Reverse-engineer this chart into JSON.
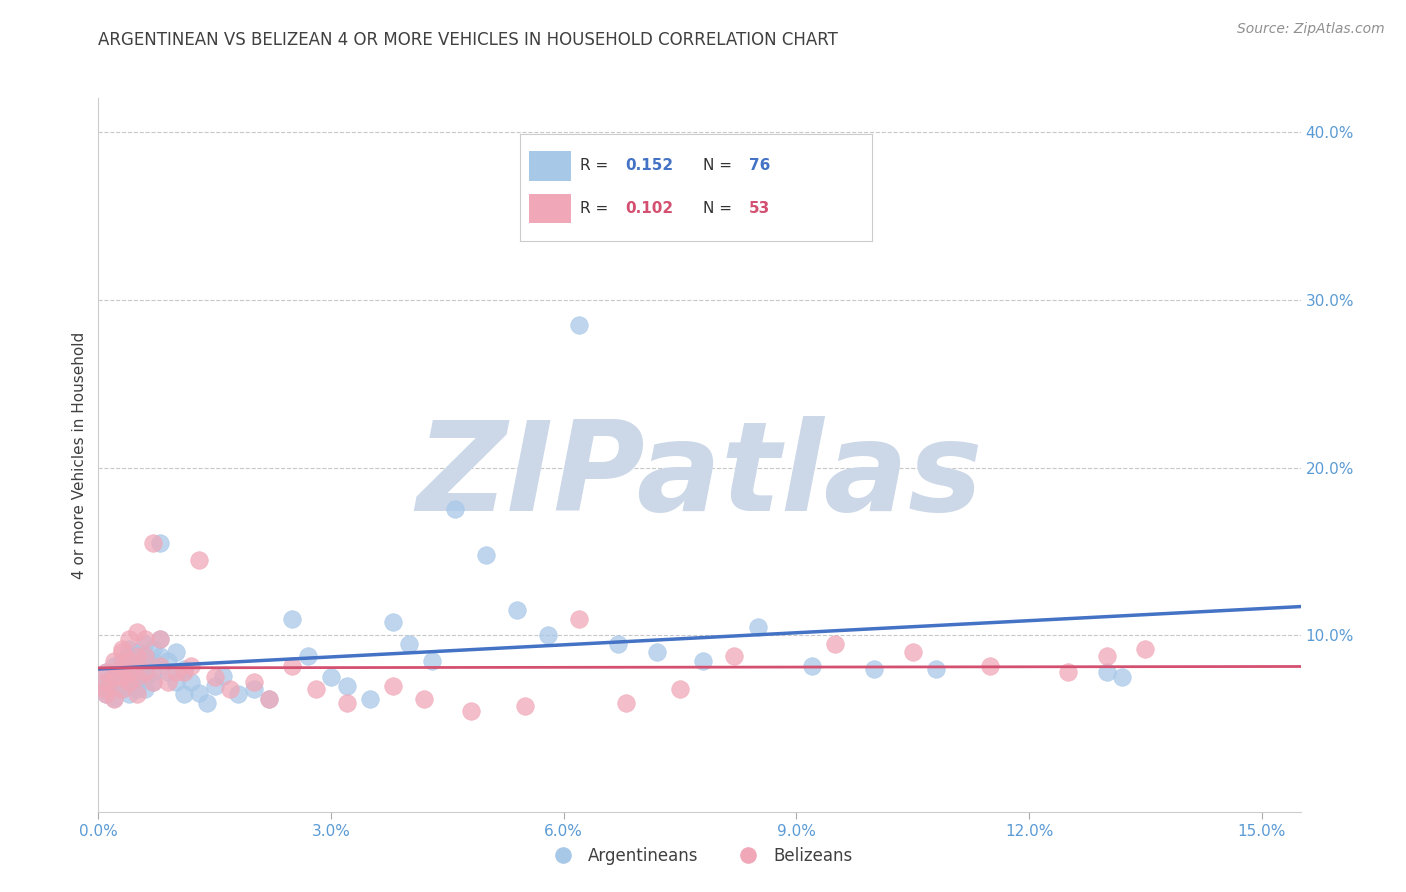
{
  "title": "ARGENTINEAN VS BELIZEAN 4 OR MORE VEHICLES IN HOUSEHOLD CORRELATION CHART",
  "source": "Source: ZipAtlas.com",
  "ylabel": "4 or more Vehicles in Household",
  "xlim": [
    0.0,
    0.155
  ],
  "ylim": [
    -0.005,
    0.42
  ],
  "xticks": [
    0.0,
    0.03,
    0.06,
    0.09,
    0.12,
    0.15
  ],
  "xtick_labels": [
    "0.0%",
    "3.0%",
    "6.0%",
    "9.0%",
    "12.0%",
    "15.0%"
  ],
  "yticks_right": [
    0.1,
    0.2,
    0.3,
    0.4
  ],
  "ytick_labels_right": [
    "10.0%",
    "20.0%",
    "30.0%",
    "40.0%"
  ],
  "blue_R": "0.152",
  "blue_N": "76",
  "pink_R": "0.102",
  "pink_N": "53",
  "blue_color": "#a8c8e8",
  "pink_color": "#f0a8b8",
  "blue_line_color": "#4472c4",
  "pink_line_color": "#d45070",
  "blue_label": "Argentineans",
  "pink_label": "Belizeans",
  "title_color": "#404040",
  "source_color": "#909090",
  "ylabel_color": "#404040",
  "tick_color": "#5b9bd5",
  "grid_color": "#c8c8c8",
  "watermark_color": "#ccd8e8",
  "blue_x": [
    0.001,
    0.001,
    0.001,
    0.001,
    0.002,
    0.002,
    0.002,
    0.002,
    0.002,
    0.003,
    0.003,
    0.003,
    0.003,
    0.003,
    0.003,
    0.004,
    0.004,
    0.004,
    0.004,
    0.004,
    0.004,
    0.005,
    0.005,
    0.005,
    0.005,
    0.005,
    0.005,
    0.005,
    0.006,
    0.006,
    0.006,
    0.006,
    0.006,
    0.007,
    0.007,
    0.007,
    0.007,
    0.008,
    0.008,
    0.008,
    0.009,
    0.009,
    0.01,
    0.01,
    0.011,
    0.011,
    0.012,
    0.013,
    0.014,
    0.015,
    0.016,
    0.018,
    0.02,
    0.022,
    0.025,
    0.027,
    0.03,
    0.032,
    0.035,
    0.038,
    0.04,
    0.043,
    0.046,
    0.05,
    0.054,
    0.058,
    0.062,
    0.067,
    0.072,
    0.078,
    0.085,
    0.092,
    0.1,
    0.108,
    0.13,
    0.132
  ],
  "blue_y": [
    0.072,
    0.078,
    0.068,
    0.065,
    0.082,
    0.075,
    0.069,
    0.076,
    0.063,
    0.085,
    0.078,
    0.072,
    0.08,
    0.068,
    0.075,
    0.088,
    0.082,
    0.076,
    0.07,
    0.065,
    0.092,
    0.085,
    0.079,
    0.073,
    0.09,
    0.083,
    0.068,
    0.076,
    0.095,
    0.088,
    0.082,
    0.075,
    0.068,
    0.092,
    0.085,
    0.078,
    0.072,
    0.155,
    0.098,
    0.088,
    0.085,
    0.078,
    0.09,
    0.072,
    0.065,
    0.08,
    0.072,
    0.066,
    0.06,
    0.07,
    0.076,
    0.065,
    0.068,
    0.062,
    0.11,
    0.088,
    0.075,
    0.07,
    0.062,
    0.108,
    0.095,
    0.085,
    0.175,
    0.148,
    0.115,
    0.1,
    0.285,
    0.095,
    0.09,
    0.085,
    0.105,
    0.082,
    0.08,
    0.08,
    0.078,
    0.075
  ],
  "pink_x": [
    0.001,
    0.001,
    0.001,
    0.001,
    0.002,
    0.002,
    0.002,
    0.003,
    0.003,
    0.003,
    0.003,
    0.003,
    0.004,
    0.004,
    0.004,
    0.004,
    0.005,
    0.005,
    0.005,
    0.005,
    0.006,
    0.006,
    0.006,
    0.007,
    0.007,
    0.008,
    0.008,
    0.009,
    0.01,
    0.011,
    0.012,
    0.013,
    0.015,
    0.017,
    0.02,
    0.022,
    0.025,
    0.028,
    0.032,
    0.038,
    0.042,
    0.048,
    0.055,
    0.062,
    0.068,
    0.075,
    0.082,
    0.095,
    0.105,
    0.115,
    0.125,
    0.13,
    0.135
  ],
  "pink_y": [
    0.072,
    0.065,
    0.078,
    0.068,
    0.085,
    0.075,
    0.062,
    0.09,
    0.082,
    0.075,
    0.068,
    0.092,
    0.098,
    0.085,
    0.078,
    0.072,
    0.102,
    0.088,
    0.075,
    0.065,
    0.098,
    0.088,
    0.078,
    0.155,
    0.072,
    0.098,
    0.082,
    0.072,
    0.078,
    0.078,
    0.082,
    0.145,
    0.075,
    0.068,
    0.072,
    0.062,
    0.082,
    0.068,
    0.06,
    0.07,
    0.062,
    0.055,
    0.058,
    0.11,
    0.06,
    0.068,
    0.088,
    0.095,
    0.09,
    0.082,
    0.078,
    0.088,
    0.092
  ]
}
